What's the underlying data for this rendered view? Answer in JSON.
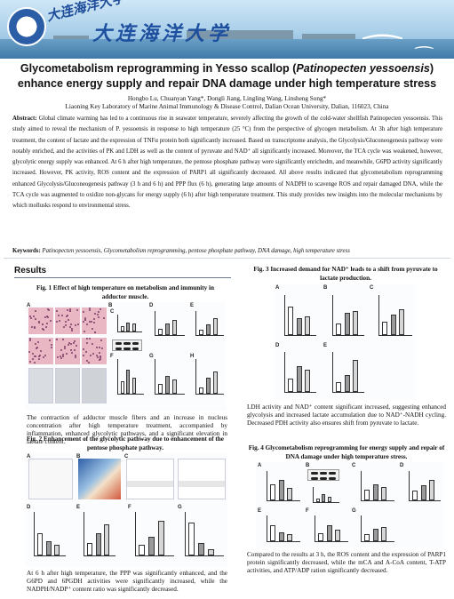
{
  "header": {
    "logo_cn": "大连海洋大学",
    "brand_cn": "大连海洋大学"
  },
  "title": {
    "part1": "Glycometabolism reprogramming in Yesso scallop (",
    "species": "Patinopecten yessoensis",
    "part2": ") enhance energy supply and repair DNA damage under high temperature stress"
  },
  "authors": "Hongbo Lu, Chuanyan Yang*, Dongli Jiang, Lingling Wang, Linsheng Song*",
  "affiliation": "Liaoning Key Laboratory of Marine Animal Immunology & Disease Control, Dalian Ocean University, Dalian, 116023, China",
  "abstract": {
    "label": "Abstract:",
    "text": "Global climate warming has led to a continuous rise in seawater temperature, severely affecting the growth of the cold-water shellfish Patinopecten yessoensis. This study aimed to reveal the mechanism of P. yessoensis in response to high temperature (25 °C) from the perspective of glycogen metabolism. At 3h after high temperature treatment, the content of lactate and the expression of TNFα protein both significantly increased. Based on transcriptome analysis, the Glycolysis/Gluconeogenesis pathway were notably enriched, and the activities of PK and LDH as well as the content of pyruvate and NAD⁺ all significantly increased. Moreover, the TCA cycle was weakened, however, glycolytic energy supply was enhanced. At 6 h after high temperature, the pentose phosphate pathway were significantly enrichedm, and meanwhile, G6PD activity significantly increased. However, PK activity, ROS content and the expression of PARP1 all significantly decreased. All above results indicated that glycometabolism reprogramming enhanced Glycolysis/Gluconeogenesis pathway (3 h and 6 h) and PPP flux (6 h), generating large amounts of NADPH to scavenge ROS and repair damaged DNA, while the TCA cycle was augmented to oxidize non-glycans for energy supply (6 h) after high temperature treatment. This study provides new insights into the molecular mechanisms by which mollusks respond to environmental stress."
  },
  "keywords": {
    "label": "Keywords:",
    "text": "Patinopecten yessoensis, Glycometabolism reprogramming, pentose phosphate pathway, DNA damage, high temperature stress"
  },
  "results_heading": "Results",
  "fig1": {
    "caption": "Fig. 1 Effect of high temperature on metabolism and immunity in adductor muscle.",
    "text": "The contraction of adductor muscle fibers and an increase in nucleus concentration after high temperature treatment, accompanied by inflammation, enhanced glycolytic pathways, and a significant elevation in lactate content.",
    "panel_labels": [
      "A",
      "B",
      "C",
      "D",
      "E",
      "F",
      "G",
      "H"
    ]
  },
  "fig2": {
    "caption": "Fig. 2 Enhancement of the glycolytic pathway due to enhancement of the pentose phosphate pathway.",
    "text": "At 6 h after high temperature, the PPP was significantly enhanced, and the G6PD and 6PGDH activities were significantly increased, while the NADPH/NADP⁺ content ratio was significantly decreased.",
    "panel_labels": [
      "A",
      "B",
      "C",
      "D",
      "E",
      "F",
      "G"
    ]
  },
  "fig3": {
    "caption": "Fig. 3 Increased demand for NAD⁺ leads to a shift from pyruvate to lactate production.",
    "text": "LDH activity and NAD⁺ content significant increased, suggesting enhanced glycolysis and increased lactate accumulation due to NAD⁺-NADH cycling. Decreased PDH activity also ensures shift from pyruvate to lactate.",
    "panel_labels": [
      "A",
      "B",
      "C",
      "D",
      "E"
    ]
  },
  "fig4": {
    "caption": "Fig. 4 Glycometabolism reprogramming for energy supply and repair of DNA damage under high temperature stress.",
    "text": "Compared to the results at 3 h, the ROS content and the expression of PARP1 protein significantly decreased, while the mCA and A-CoA content, T-ATP activities, and ATP/ADP ration significantly decreased.",
    "panel_labels": [
      "A",
      "B",
      "C",
      "D",
      "E",
      "F",
      "G"
    ]
  },
  "colors": {
    "title": "#111111",
    "sea": "#3f7aa9",
    "brand": "#1d4f9e",
    "histology": "#e9b6c4"
  }
}
